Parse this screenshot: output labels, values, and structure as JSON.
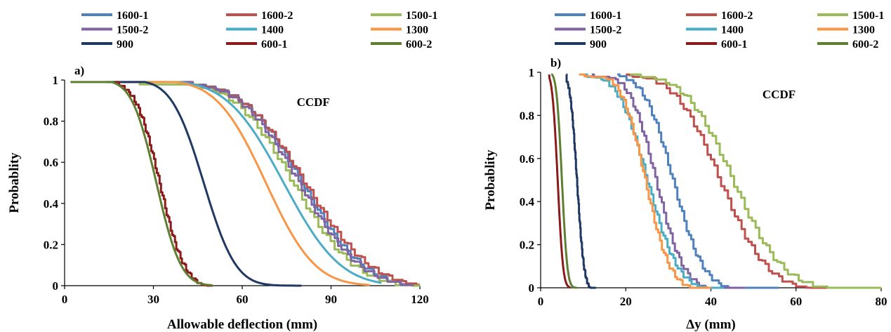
{
  "chart_data": [
    {
      "type": "line",
      "panel_label": "a)",
      "annotation": "CCDF",
      "xlabel": "Allowable deflection (mm)",
      "ylabel": "Probablity",
      "xlim": [
        0,
        120
      ],
      "ylim": [
        0,
        1
      ],
      "xticks": [
        "0",
        "30",
        "60",
        "90",
        "120"
      ],
      "yticks": [
        "0",
        "0.2",
        "0.4",
        "0.6",
        "0.8",
        "1"
      ],
      "legend_position": "top",
      "series": [
        {
          "name": "1600-1",
          "color": "#4F81BD",
          "mu": 80,
          "sigma": 16,
          "xmin": 42,
          "xmax": 120,
          "steps": true
        },
        {
          "name": "1600-2",
          "color": "#C0504D",
          "mu": 81,
          "sigma": 17,
          "xmin": 39,
          "xmax": 120,
          "steps": true
        },
        {
          "name": "1500-1",
          "color": "#9BBB59",
          "mu": 77,
          "sigma": 16,
          "xmin": 24,
          "xmax": 120,
          "steps": true
        },
        {
          "name": "1500-2",
          "color": "#8064A2",
          "mu": 79,
          "sigma": 16,
          "xmin": 40,
          "xmax": 118,
          "steps": true
        },
        {
          "name": "1400",
          "color": "#4BACC6",
          "mu": 74,
          "sigma": 15,
          "xmin": 22,
          "xmax": 107,
          "steps": false
        },
        {
          "name": "1300",
          "color": "#F79646",
          "mu": 68,
          "sigma": 13,
          "xmin": 19,
          "xmax": 103,
          "steps": false
        },
        {
          "name": "900",
          "color": "#1F3864",
          "mu": 47,
          "sigma": 8.5,
          "xmin": 14,
          "xmax": 80,
          "steps": false
        },
        {
          "name": "600-1",
          "color": "#8B1A1A",
          "mu": 32,
          "sigma": 6.5,
          "xmin": 17,
          "xmax": 50,
          "steps": true
        },
        {
          "name": "600-2",
          "color": "#5E7F32",
          "mu": 31,
          "sigma": 6.5,
          "xmin": 2,
          "xmax": 50,
          "steps": false
        }
      ]
    },
    {
      "type": "line",
      "panel_label": "b)",
      "annotation": "CCDF",
      "xlabel": "Δy (mm)",
      "ylabel": "Probablity",
      "xlim": [
        0,
        80
      ],
      "ylim": [
        0,
        1
      ],
      "xticks": [
        "0",
        "20",
        "40",
        "60",
        "80"
      ],
      "yticks": [
        "0",
        "0.2",
        "0.4",
        "0.6",
        "0.8",
        "1"
      ],
      "legend_position": "top",
      "series": [
        {
          "name": "1600-1",
          "color": "#4F81BD",
          "mu": 31,
          "sigma": 5.5,
          "xmin": 18,
          "xmax": 56,
          "steps": true
        },
        {
          "name": "1600-2",
          "color": "#C0504D",
          "mu": 42,
          "sigma": 8.5,
          "xmin": 20,
          "xmax": 76,
          "steps": true
        },
        {
          "name": "1500-1",
          "color": "#9BBB59",
          "mu": 45,
          "sigma": 9,
          "xmin": 21,
          "xmax": 80,
          "steps": true
        },
        {
          "name": "1500-2",
          "color": "#8064A2",
          "mu": 27,
          "sigma": 5,
          "xmin": 12,
          "xmax": 48,
          "steps": true
        },
        {
          "name": "1400",
          "color": "#4BACC6",
          "mu": 25,
          "sigma": 5.5,
          "xmin": 10,
          "xmax": 43,
          "steps": true
        },
        {
          "name": "1300",
          "color": "#F79646",
          "mu": 24.5,
          "sigma": 4.5,
          "xmin": 9,
          "xmax": 40,
          "steps": true
        },
        {
          "name": "900",
          "color": "#1F3864",
          "mu": 8.5,
          "sigma": 1.3,
          "xmin": 6,
          "xmax": 13,
          "steps": true
        },
        {
          "name": "600-1",
          "color": "#8B1A1A",
          "mu": 4.0,
          "sigma": 1.0,
          "xmin": 2,
          "xmax": 7,
          "steps": false
        },
        {
          "name": "600-2",
          "color": "#5E7F32",
          "mu": 5.0,
          "sigma": 1.0,
          "xmin": 2.5,
          "xmax": 8.5,
          "steps": false
        }
      ]
    }
  ]
}
